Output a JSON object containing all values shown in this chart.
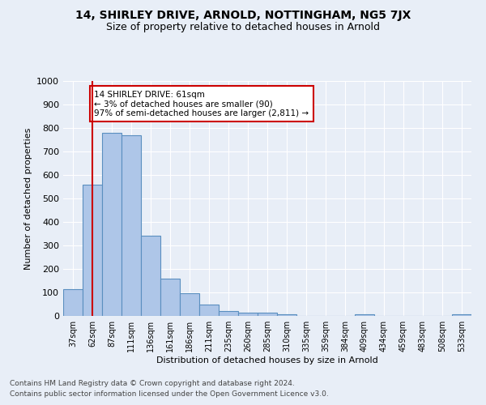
{
  "title": "14, SHIRLEY DRIVE, ARNOLD, NOTTINGHAM, NG5 7JX",
  "subtitle": "Size of property relative to detached houses in Arnold",
  "xlabel": "Distribution of detached houses by size in Arnold",
  "ylabel": "Number of detached properties",
  "categories": [
    "37sqm",
    "62sqm",
    "87sqm",
    "111sqm",
    "136sqm",
    "161sqm",
    "186sqm",
    "211sqm",
    "235sqm",
    "260sqm",
    "285sqm",
    "310sqm",
    "335sqm",
    "359sqm",
    "384sqm",
    "409sqm",
    "434sqm",
    "459sqm",
    "483sqm",
    "508sqm",
    "533sqm"
  ],
  "values": [
    113,
    558,
    778,
    770,
    343,
    160,
    98,
    50,
    20,
    13,
    13,
    8,
    0,
    0,
    0,
    8,
    0,
    0,
    0,
    0,
    8
  ],
  "bar_color": "#aec6e8",
  "bar_edge_color": "#5a8fc0",
  "bg_color": "#e8eef7",
  "annotation_text": "14 SHIRLEY DRIVE: 61sqm\n← 3% of detached houses are smaller (90)\n97% of semi-detached houses are larger (2,811) →",
  "annotation_box_color": "#cc0000",
  "property_line_x": 1,
  "ylim": [
    0,
    1000
  ],
  "yticks": [
    0,
    100,
    200,
    300,
    400,
    500,
    600,
    700,
    800,
    900,
    1000
  ],
  "footnote1": "Contains HM Land Registry data © Crown copyright and database right 2024.",
  "footnote2": "Contains public sector information licensed under the Open Government Licence v3.0."
}
